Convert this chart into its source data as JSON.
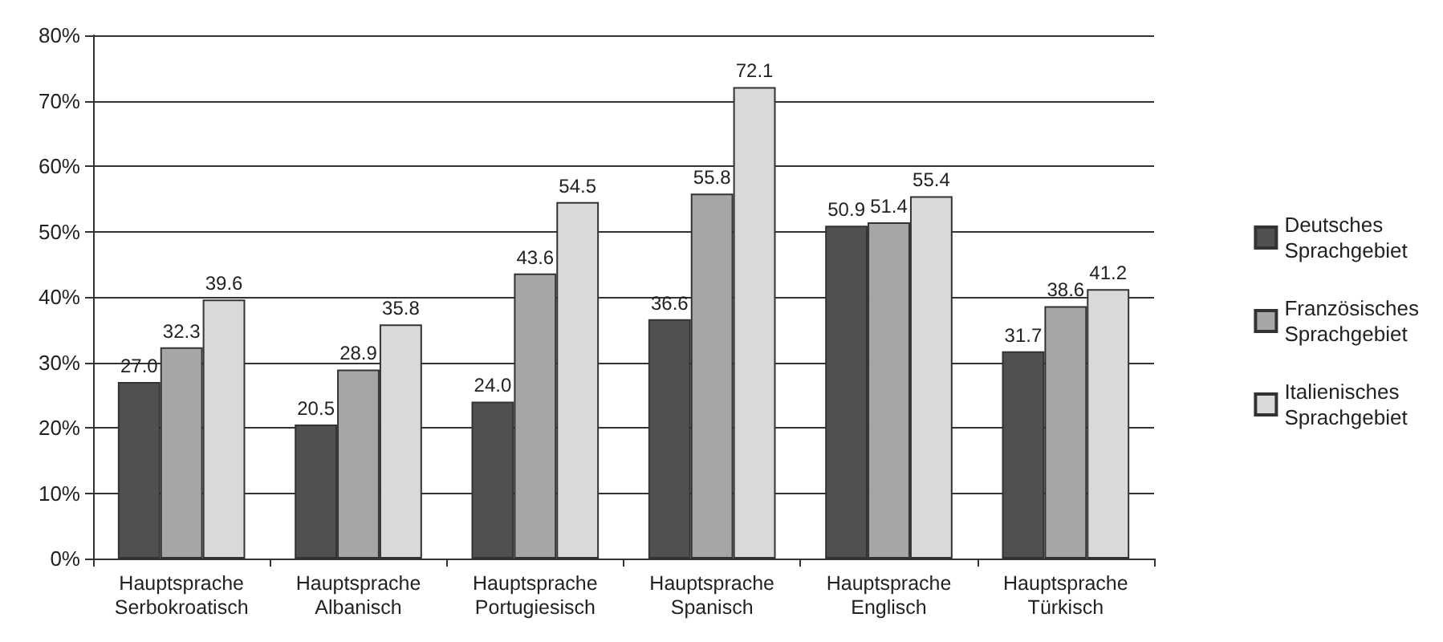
{
  "chart_data": {
    "type": "bar",
    "categories": [
      "Hauptsprache\nSerbokroatisch",
      "Hauptsprache\nAlbanisch",
      "Hauptsprache\nPortugiesisch",
      "Hauptsprache\nSpanisch",
      "Hauptsprache\nEnglisch",
      "Hauptsprache\nTürkisch"
    ],
    "series": [
      {
        "name": "Deutsches\nSprachgebiet",
        "color": "#505050",
        "values": [
          27.0,
          20.5,
          24.0,
          36.6,
          50.9,
          31.7
        ],
        "value_labels": [
          "27.0",
          "20.5",
          "24.0",
          "36.6",
          "50.9",
          "31.7"
        ]
      },
      {
        "name": "Französisches\nSprachgebiet",
        "color": "#a6a6a6",
        "values": [
          32.3,
          28.9,
          43.6,
          55.8,
          51.4,
          38.6
        ],
        "value_labels": [
          "32.3",
          "28.9",
          "43.6",
          "55.8",
          "51.4",
          "38.6"
        ]
      },
      {
        "name": "Italienisches\nSprachgebiet",
        "color": "#d9d9d9",
        "values": [
          39.6,
          35.8,
          54.5,
          72.1,
          55.4,
          41.2
        ],
        "value_labels": [
          "39.6",
          "35.8",
          "54.5",
          "72.1",
          "55.4",
          "41.2"
        ]
      }
    ],
    "ylim": [
      0,
      80
    ],
    "yticks": [
      {
        "value": 0,
        "label": "0%"
      },
      {
        "value": 10,
        "label": "10%"
      },
      {
        "value": 20,
        "label": "20%"
      },
      {
        "value": 30,
        "label": "30%"
      },
      {
        "value": 40,
        "label": "40%"
      },
      {
        "value": 50,
        "label": "50%"
      },
      {
        "value": 60,
        "label": "60%"
      },
      {
        "value": 70,
        "label": "70%"
      },
      {
        "value": 80,
        "label": "80%"
      }
    ],
    "grid": "y",
    "legend": "right"
  }
}
